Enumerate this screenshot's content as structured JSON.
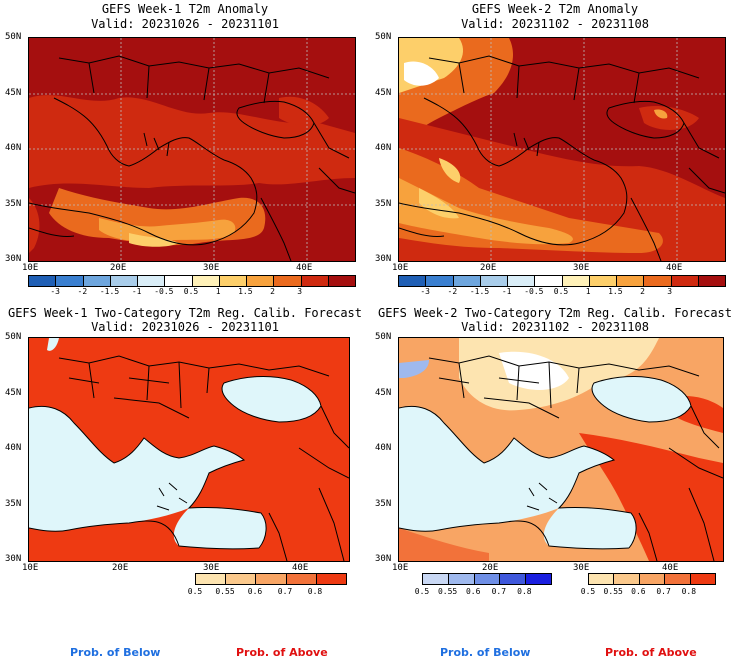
{
  "panels": {
    "w1_anom": {
      "title": "GEFS Week-1 T2m Anomaly",
      "valid": "Valid: 20231026 - 20231101"
    },
    "w2_anom": {
      "title": "GEFS Week-2 T2m Anomaly",
      "valid": "Valid: 20231102 - 20231108"
    },
    "w1_prob": {
      "title": "GEFS Week-1 Two-Category T2m Reg. Calib. Forecast",
      "valid": "Valid: 20231026 - 20231101"
    },
    "w2_prob": {
      "title": "GEFS Week-2 Two-Category T2m Reg. Calib. Forecast",
      "valid": "Valid: 20231102 - 20231108"
    }
  },
  "axes": {
    "lat_labels": [
      "50N",
      "45N",
      "40N",
      "35N",
      "30N"
    ],
    "lon_labels": [
      "10E",
      "20E",
      "30E",
      "40E"
    ]
  },
  "anomaly_colorbar": {
    "ticks": [
      "-3",
      "-2",
      "-1.5",
      "-1",
      "-0.5",
      "0.5",
      "1",
      "1.5",
      "2",
      "3"
    ],
    "colors": [
      "#1f5fb5",
      "#3a7fd0",
      "#6ea6de",
      "#a9cdea",
      "#daeef8",
      "#ffffff",
      "#fff1b8",
      "#fdcf6a",
      "#f7a23d",
      "#ea6a1e",
      "#cf2a10",
      "#a50f0f"
    ]
  },
  "prob_below_colorbar": {
    "ticks": [
      "0.5",
      "0.55",
      "0.6",
      "0.7",
      "0.8"
    ],
    "colors": [
      "#c9d8f4",
      "#9fb9ee",
      "#6f8fe6",
      "#3f58dc",
      "#1a1fe0"
    ]
  },
  "prob_above_colorbar": {
    "ticks": [
      "0.5",
      "0.55",
      "0.6",
      "0.7",
      "0.8"
    ],
    "colors": [
      "#fde4b0",
      "#fbc98c",
      "#f8a564",
      "#f2723a",
      "#ee3a12"
    ]
  },
  "legend": {
    "below": "Prob. of Below",
    "above": "Prob. of Above"
  },
  "colors": {
    "anom_base": "#a50f0f",
    "anom_mid": "#cf2a10",
    "anom_warm": "#ea6a1e",
    "anom_light": "#f7a23d",
    "anom_pale": "#fdcf6a",
    "prob_above": "#ee3a12",
    "prob_mid": "#f8a564",
    "prob_pale": "#fde4b0",
    "sea": "#dff6fa",
    "below_blue": "#9fb9ee",
    "label_blue": "#1f6fe0",
    "label_red": "#e01010"
  }
}
